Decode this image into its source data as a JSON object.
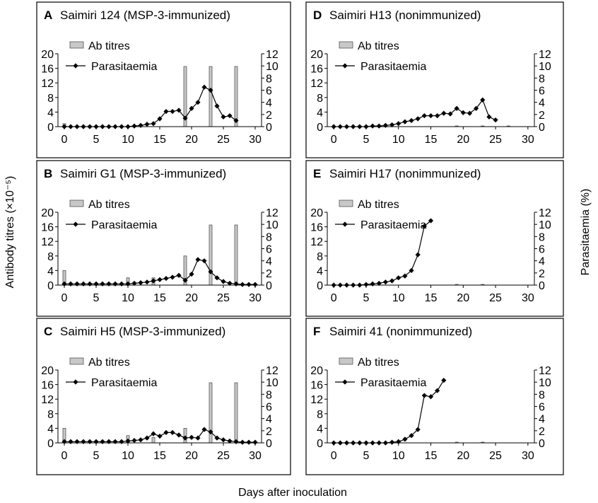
{
  "figure": {
    "ylabel_left": "Antibody titres (×10⁻⁵)",
    "ylabel_right": "Parasitaemia (%)",
    "xlabel": "Days after inoculation"
  },
  "chart_data": [
    {
      "panel": "A",
      "title": "Saimiri 124 (MSP-3-immunized)",
      "type": "bar+line",
      "legend": {
        "bar": "Ab titres",
        "line": "Parasitaemia",
        "placement": "top-left"
      },
      "x_ticks": [
        "0",
        "5",
        "10",
        "15",
        "20",
        "25",
        "30"
      ],
      "left_ticks": [
        "0",
        "4",
        "8",
        "12",
        "16",
        "20"
      ],
      "right_ticks": [
        "0",
        "2",
        "4",
        "6",
        "8",
        "10",
        "12"
      ],
      "xlim": [
        -1,
        31
      ],
      "ylim_left": [
        0,
        20
      ],
      "ylim_right": [
        0,
        12
      ],
      "bars": {
        "x": [
          0,
          19,
          23,
          27
        ],
        "values": [
          0.8,
          16.5,
          16.5,
          16.5
        ]
      },
      "line": {
        "x": [
          0,
          1,
          2,
          3,
          4,
          5,
          6,
          7,
          8,
          9,
          10,
          11,
          12,
          13,
          14,
          15,
          16,
          17,
          18,
          19,
          20,
          21,
          22,
          23,
          24,
          25,
          26,
          27
        ],
        "values": [
          0,
          0,
          0,
          0,
          0,
          0,
          0,
          0,
          0,
          0,
          0,
          0.1,
          0.2,
          0.4,
          0.5,
          1.3,
          2.5,
          2.5,
          2.7,
          1.4,
          3,
          4,
          6.5,
          6,
          3.4,
          1.6,
          1.8,
          1
        ]
      }
    },
    {
      "panel": "B",
      "title": "Saimiri G1 (MSP-3-immunized)",
      "type": "bar+line",
      "legend": {
        "bar": "Ab titres",
        "line": "Parasitaemia",
        "placement": "top-left"
      },
      "x_ticks": [
        "0",
        "5",
        "10",
        "15",
        "20",
        "25",
        "30"
      ],
      "left_ticks": [
        "0",
        "4",
        "8",
        "12",
        "16",
        "20"
      ],
      "right_ticks": [
        "0",
        "2",
        "4",
        "6",
        "8",
        "10",
        "12"
      ],
      "xlim": [
        -1,
        31
      ],
      "ylim_left": [
        0,
        20
      ],
      "ylim_right": [
        0,
        12
      ],
      "bars": {
        "x": [
          0,
          10,
          14,
          19,
          23,
          27
        ],
        "values": [
          4,
          2,
          2,
          8,
          16.5,
          16.5
        ]
      },
      "line": {
        "x": [
          0,
          1,
          2,
          3,
          4,
          5,
          6,
          7,
          8,
          9,
          10,
          11,
          12,
          13,
          14,
          15,
          16,
          17,
          18,
          19,
          20,
          21,
          22,
          23,
          24,
          25,
          26,
          27,
          28,
          29,
          30
        ],
        "values": [
          0.2,
          0.2,
          0.2,
          0.2,
          0.2,
          0.2,
          0.2,
          0.2,
          0.2,
          0.2,
          0.2,
          0.3,
          0.4,
          0.5,
          0.7,
          0.9,
          1.1,
          1.3,
          1.6,
          0.8,
          1.8,
          4.2,
          4,
          2.2,
          1.2,
          0.6,
          0.3,
          0.2,
          0.1,
          0.1,
          0.1
        ]
      }
    },
    {
      "panel": "C",
      "title": "Saimiri H5 (MSP-3-immunized)",
      "type": "bar+line",
      "legend": {
        "bar": "Ab titres",
        "line": "Parasitaemia",
        "placement": "top-left"
      },
      "x_ticks": [
        "0",
        "5",
        "10",
        "15",
        "20",
        "25",
        "30"
      ],
      "left_ticks": [
        "0",
        "4",
        "8",
        "12",
        "16",
        "20"
      ],
      "right_ticks": [
        "0",
        "2",
        "4",
        "6",
        "8",
        "10",
        "12"
      ],
      "xlim": [
        -1,
        31
      ],
      "ylim_left": [
        0,
        20
      ],
      "ylim_right": [
        0,
        12
      ],
      "bars": {
        "x": [
          0,
          10,
          14,
          19,
          23,
          27
        ],
        "values": [
          4,
          2,
          1.5,
          4,
          16.5,
          16.5
        ]
      },
      "line": {
        "x": [
          0,
          1,
          2,
          3,
          4,
          5,
          6,
          7,
          8,
          9,
          10,
          11,
          12,
          13,
          14,
          15,
          16,
          17,
          18,
          19,
          20,
          21,
          22,
          23,
          24,
          25,
          26,
          27,
          28,
          29,
          30
        ],
        "values": [
          0.2,
          0.2,
          0.2,
          0.2,
          0.2,
          0.2,
          0.2,
          0.2,
          0.2,
          0.2,
          0.3,
          0.4,
          0.5,
          0.8,
          1.5,
          1.1,
          1.7,
          1.7,
          1.3,
          0.8,
          0.9,
          0.8,
          2.2,
          1.8,
          0.8,
          0.5,
          0.3,
          0.2,
          0.1,
          0.1,
          0.1
        ]
      }
    },
    {
      "panel": "D",
      "title": "Saimiri H13 (nonimmunized)",
      "type": "bar+line",
      "legend": {
        "bar": "Ab titres",
        "line": "Parasitaemia",
        "placement": "top-left"
      },
      "x_ticks": [
        "0",
        "5",
        "10",
        "15",
        "20",
        "25",
        "30"
      ],
      "left_ticks": [
        "0",
        "4",
        "8",
        "12",
        "16",
        "20"
      ],
      "right_ticks": [
        "0",
        "2",
        "4",
        "6",
        "8",
        "10",
        "12"
      ],
      "xlim": [
        -1,
        31
      ],
      "ylim_left": [
        0,
        20
      ],
      "ylim_right": [
        0,
        12
      ],
      "bars": {
        "x": [
          19,
          23,
          27
        ],
        "values": [
          0.2,
          0.2,
          0.2
        ]
      },
      "line": {
        "x": [
          0,
          1,
          2,
          3,
          4,
          5,
          6,
          7,
          8,
          9,
          10,
          11,
          12,
          13,
          14,
          15,
          16,
          17,
          18,
          19,
          20,
          21,
          22,
          23,
          24,
          25
        ],
        "values": [
          0,
          0,
          0,
          0,
          0,
          0,
          0.1,
          0.1,
          0.2,
          0.3,
          0.5,
          0.8,
          1,
          1.3,
          1.8,
          1.8,
          1.8,
          2.2,
          2.1,
          3,
          2.3,
          2.2,
          3,
          4.4,
          1.6,
          1.1
        ]
      }
    },
    {
      "panel": "E",
      "title": "Saimiri H17 (nonimmunized)",
      "type": "bar+line",
      "legend": {
        "bar": "Ab titres",
        "line": "Parasitaemia",
        "placement": "top-left"
      },
      "x_ticks": [
        "0",
        "5",
        "10",
        "15",
        "20",
        "25",
        "30"
      ],
      "left_ticks": [
        "0",
        "4",
        "8",
        "12",
        "16",
        "20"
      ],
      "right_ticks": [
        "0",
        "2",
        "4",
        "6",
        "8",
        "10",
        "12"
      ],
      "xlim": [
        -1,
        31
      ],
      "ylim_left": [
        0,
        20
      ],
      "ylim_right": [
        0,
        12
      ],
      "bars": {
        "x": [
          19,
          23
        ],
        "values": [
          0.2,
          0.2
        ]
      },
      "line": {
        "x": [
          0,
          1,
          2,
          3,
          4,
          5,
          6,
          7,
          8,
          9,
          10,
          11,
          12,
          13,
          14,
          15
        ],
        "values": [
          0,
          0,
          0,
          0,
          0,
          0.1,
          0.2,
          0.3,
          0.5,
          0.7,
          1.2,
          1.5,
          2.4,
          5,
          9.7,
          10.6
        ]
      }
    },
    {
      "panel": "F",
      "title": "Saimiri 41 (nonimmunized)",
      "type": "bar+line",
      "legend": {
        "bar": "Ab titres",
        "line": "Parasitaemia",
        "placement": "top-left"
      },
      "x_ticks": [
        "0",
        "5",
        "10",
        "15",
        "20",
        "25",
        "30"
      ],
      "left_ticks": [
        "0",
        "4",
        "8",
        "12",
        "16",
        "20"
      ],
      "right_ticks": [
        "0",
        "2",
        "4",
        "6",
        "8",
        "10",
        "12"
      ],
      "xlim": [
        -1,
        31
      ],
      "ylim_left": [
        0,
        20
      ],
      "ylim_right": [
        0,
        12
      ],
      "bars": {
        "x": [
          19,
          23
        ],
        "values": [
          0.2,
          0.2
        ]
      },
      "line": {
        "x": [
          0,
          1,
          2,
          3,
          4,
          5,
          6,
          7,
          8,
          9,
          10,
          11,
          12,
          13,
          14,
          15,
          16,
          17
        ],
        "values": [
          0,
          0,
          0,
          0,
          0,
          0,
          0,
          0,
          0,
          0.1,
          0.2,
          0.6,
          1.2,
          2.2,
          7.8,
          7.6,
          8.6,
          10.3
        ]
      }
    }
  ]
}
